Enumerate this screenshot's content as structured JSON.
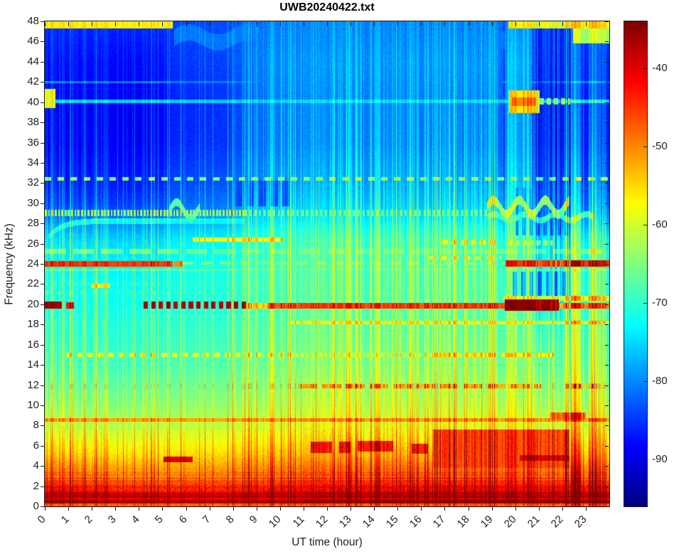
{
  "chart_data": {
    "type": "heatmap",
    "title": "UWB20240422.txt",
    "xlabel": "UT time (hour)",
    "ylabel": "Frequency (kHz)",
    "xlim": [
      0,
      24
    ],
    "ylim": [
      0,
      48
    ],
    "xticks": [
      0,
      1,
      2,
      3,
      4,
      5,
      6,
      7,
      8,
      9,
      10,
      11,
      12,
      13,
      14,
      15,
      16,
      17,
      18,
      19,
      20,
      21,
      22,
      23
    ],
    "yticks": [
      0,
      2,
      4,
      6,
      8,
      10,
      12,
      14,
      16,
      18,
      20,
      22,
      24,
      26,
      28,
      30,
      32,
      34,
      36,
      38,
      40,
      42,
      44,
      46,
      48
    ],
    "colormap": "jet",
    "clim": [
      -96,
      -34
    ],
    "colorbar": {
      "ticks": [
        -40,
        -50,
        -60,
        -70,
        -80,
        -90
      ]
    },
    "notes": "24-hour VLF spectrogram, power in dB. Strong narrowband transmitter lines, broadband sferic streaks, day/night ionospheric change in upper band.",
    "bands": [
      {
        "f": [
          47.3,
          48.0
        ],
        "t": [
          0,
          5.45
        ],
        "db": -57
      },
      {
        "f": [
          47.3,
          48.0
        ],
        "t": [
          19.7,
          24
        ],
        "db": -57
      },
      {
        "f": [
          45.8,
          48.0
        ],
        "t": [
          22.45,
          24
        ],
        "db": -64
      },
      {
        "f": [
          39.9,
          40.25
        ],
        "t": [
          0,
          24
        ],
        "db": -76
      },
      {
        "f": [
          39.4,
          41.3
        ],
        "t": [
          0,
          0.45
        ],
        "db": -60
      },
      {
        "f": [
          38.9,
          41.2
        ],
        "t": [
          19.75,
          21.05
        ],
        "db": -56
      },
      {
        "f": [
          39.6,
          40.5
        ],
        "t": [
          19.85,
          20.9
        ],
        "db": -50
      },
      {
        "f": [
          39.8,
          40.4
        ],
        "t": [
          21.05,
          22.35
        ],
        "db": -64,
        "dash": [
          0.3,
          0.55
        ]
      },
      {
        "f": [
          41.85,
          42.1
        ],
        "t": [
          0,
          24
        ],
        "db": -81
      },
      {
        "f": [
          32.2,
          32.6
        ],
        "t": [
          0,
          24
        ],
        "db": -66,
        "dash": [
          0.55,
          0.5
        ]
      },
      {
        "f": [
          28.75,
          29.35
        ],
        "t": [
          0,
          8.5
        ],
        "db": -64,
        "dash": [
          0.14,
          0.6
        ]
      },
      {
        "f": [
          28.75,
          29.35
        ],
        "t": [
          8.5,
          18.8
        ],
        "db": -68,
        "dash": [
          0.2,
          0.5
        ]
      },
      {
        "f": [
          28.15,
          28.45
        ],
        "t": [
          8.5,
          12
        ],
        "db": -76
      },
      {
        "f": [
          26.2,
          26.6
        ],
        "t": [
          6.3,
          10.1
        ],
        "db": -58
      },
      {
        "f": [
          25.9,
          26.4
        ],
        "t": [
          16.9,
          19.3
        ],
        "db": -61,
        "dash": [
          0.4,
          0.6
        ]
      },
      {
        "f": [
          25.8,
          26.3
        ],
        "t": [
          19.7,
          21.6
        ],
        "db": -63,
        "dash": [
          0.3,
          0.6
        ]
      },
      {
        "f": [
          25.0,
          25.45
        ],
        "t": [
          0,
          24
        ],
        "db": -67,
        "dash": [
          1.2,
          0.75
        ]
      },
      {
        "f": [
          23.75,
          24.3
        ],
        "t": [
          0,
          5.45
        ],
        "db": -46
      },
      {
        "f": [
          23.75,
          24.3
        ],
        "t": [
          5.5,
          5.85
        ],
        "db": -50
      },
      {
        "f": [
          23.9,
          24.2
        ],
        "t": [
          5.85,
          19.6
        ],
        "db": -66,
        "dash": [
          0.8,
          0.6
        ]
      },
      {
        "f": [
          24.4,
          24.75
        ],
        "t": [
          16.3,
          19.4
        ],
        "db": -62,
        "dash": [
          0.5,
          0.6
        ]
      },
      {
        "f": [
          23.7,
          24.35
        ],
        "t": [
          19.6,
          24
        ],
        "db": -45
      },
      {
        "f": [
          23.3,
          23.5
        ],
        "t": [
          0,
          24
        ],
        "db": -68
      },
      {
        "f": [
          21.6,
          22.0
        ],
        "t": [
          1.95,
          2.75
        ],
        "db": -59
      },
      {
        "f": [
          21.9,
          22.25
        ],
        "t": [
          0,
          24
        ],
        "db": -71,
        "dash": [
          0.3,
          0.5
        ]
      },
      {
        "f": [
          21.0,
          21.3
        ],
        "t": [
          0,
          8
        ],
        "db": -70,
        "dash": [
          0.5,
          0.4
        ]
      },
      {
        "f": [
          20.35,
          20.8
        ],
        "t": [
          19.5,
          24
        ],
        "db": -59
      },
      {
        "f": [
          19.55,
          20.25
        ],
        "t": [
          0,
          0.72
        ],
        "db": -37
      },
      {
        "f": [
          19.55,
          20.2
        ],
        "t": [
          0.9,
          1.25
        ],
        "db": -43
      },
      {
        "f": [
          19.55,
          20.25
        ],
        "t": [
          4.2,
          8.55
        ],
        "db": -37,
        "dash": [
          0.32,
          0.58
        ]
      },
      {
        "f": [
          19.6,
          20.1
        ],
        "t": [
          8.55,
          9.5
        ],
        "db": -55
      },
      {
        "f": [
          19.6,
          20.15
        ],
        "t": [
          9.5,
          19.55
        ],
        "db": -47
      },
      {
        "f": [
          19.35,
          20.45
        ],
        "t": [
          19.55,
          21.85
        ],
        "db": -35
      },
      {
        "f": [
          19.6,
          20.15
        ],
        "t": [
          21.85,
          24
        ],
        "db": -50
      },
      {
        "f": [
          18.0,
          18.4
        ],
        "t": [
          10.5,
          24
        ],
        "db": -60
      },
      {
        "f": [
          18.0,
          18.35
        ],
        "t": [
          0,
          10.5
        ],
        "db": -70,
        "dash": [
          0.4,
          0.5
        ]
      },
      {
        "f": [
          16.2,
          16.55
        ],
        "t": [
          0,
          24
        ],
        "db": -71,
        "dash": [
          0.8,
          0.6
        ]
      },
      {
        "f": [
          14.8,
          15.2
        ],
        "t": [
          0.9,
          10.5
        ],
        "db": -58,
        "dash": [
          0.45,
          0.5
        ]
      },
      {
        "f": [
          14.8,
          15.2
        ],
        "t": [
          10.5,
          16.4
        ],
        "db": -60,
        "dash": [
          0.2,
          0.45
        ]
      },
      {
        "f": [
          14.8,
          15.2
        ],
        "t": [
          16.4,
          21.6
        ],
        "db": -57,
        "dash": [
          1.5,
          0.85
        ]
      },
      {
        "f": [
          13.15,
          13.45
        ],
        "t": [
          5.5,
          10.2
        ],
        "db": -72
      },
      {
        "f": [
          11.7,
          12.1
        ],
        "t": [
          10.8,
          21.1
        ],
        "db": -53,
        "dash": [
          1.0,
          0.8
        ]
      },
      {
        "f": [
          11.7,
          12.1
        ],
        "t": [
          22.2,
          23.5
        ],
        "db": -54,
        "dash": [
          0.25,
          0.6
        ]
      },
      {
        "f": [
          8.35,
          8.7
        ],
        "t": [
          0,
          24
        ],
        "db": -52
      },
      {
        "f": [
          8.6,
          9.3
        ],
        "t": [
          21.5,
          23.0
        ],
        "db": -49
      },
      {
        "f": [
          4.35,
          4.9
        ],
        "t": [
          5.05,
          6.3
        ],
        "db": -40
      },
      {
        "f": [
          5.3,
          6.4
        ],
        "t": [
          11.3,
          12.2
        ],
        "db": -44
      },
      {
        "f": [
          5.3,
          6.4
        ],
        "t": [
          12.5,
          13.0
        ],
        "db": -44
      },
      {
        "f": [
          5.4,
          6.5
        ],
        "t": [
          13.3,
          14.8
        ],
        "db": -44
      },
      {
        "f": [
          5.2,
          6.2
        ],
        "t": [
          15.6,
          16.3
        ],
        "db": -44
      },
      {
        "f": [
          3.8,
          7.6
        ],
        "t": [
          16.5,
          22.3
        ],
        "db": -47
      },
      {
        "f": [
          4.5,
          5.1
        ],
        "t": [
          20.2,
          22.3
        ],
        "db": -40
      },
      {
        "f": [
          0.35,
          1.3
        ],
        "t": [
          0,
          24
        ],
        "db": -39
      },
      {
        "f": [
          0.0,
          0.3
        ],
        "t": [
          0,
          24
        ],
        "db": -48,
        "mode": "min"
      },
      {
        "f": [
          29.7,
          32.2
        ],
        "t": [
          8.1,
          10.6
        ],
        "db": -84,
        "mode": "min",
        "dash": [
          0.5,
          0.6
        ]
      },
      {
        "f": [
          20.8,
          23.2
        ],
        "t": [
          19.9,
          22.3
        ],
        "db": -80,
        "mode": "min",
        "dash": [
          0.35,
          0.5
        ]
      },
      {
        "f": [
          26.8,
          31.5
        ],
        "t": [
          20.0,
          22.3
        ],
        "db": -82,
        "mode": "min",
        "dash": [
          0.3,
          0.45
        ]
      }
    ],
    "curves_wavy": [
      {
        "t": [
          5.5,
          19.6
        ],
        "c0": 46.4,
        "amp": 0.5,
        "per": 2.5,
        "th": 0.8,
        "db": -81
      },
      {
        "t": [
          5.3,
          6.6
        ],
        "c0": 29.3,
        "amp": 0.8,
        "per": 1.2,
        "th": 0.4,
        "db": -68
      },
      {
        "t": [
          18.8,
          22.3
        ],
        "c0": 29.6,
        "amp": 0.7,
        "per": 1.1,
        "th": 0.45,
        "db": -64
      },
      {
        "t": [
          18.8,
          23.3
        ],
        "c0": 28.6,
        "amp": 0.3,
        "per": 1.3,
        "th": 0.3,
        "db": -70
      }
    ],
    "curves_hook": [
      {
        "t": [
          0.15,
          8.5
        ],
        "cEnd": 28.25,
        "drop": 1.65,
        "tau": 0.55,
        "th": 0.28,
        "db": -73
      }
    ],
    "render": {
      "seed": 987654321,
      "profile": [
        [
          0,
          -41
        ],
        [
          0.4,
          -40
        ],
        [
          1.2,
          -42
        ],
        [
          2,
          -46
        ],
        [
          3,
          -50
        ],
        [
          4,
          -53
        ],
        [
          5,
          -56
        ],
        [
          6,
          -58
        ],
        [
          7,
          -60
        ],
        [
          8,
          -62
        ],
        [
          9,
          -63.5
        ],
        [
          10,
          -65
        ],
        [
          11,
          -66
        ],
        [
          12,
          -67
        ],
        [
          14,
          -69
        ],
        [
          16,
          -70
        ],
        [
          18,
          -71
        ],
        [
          20,
          -72
        ],
        [
          22,
          -72.5
        ],
        [
          24,
          -73.5
        ],
        [
          26,
          -75
        ],
        [
          27,
          -77
        ],
        [
          28,
          -80
        ],
        [
          29,
          -83
        ],
        [
          30,
          -85
        ],
        [
          32,
          -87
        ],
        [
          34,
          -88
        ],
        [
          36,
          -89
        ],
        [
          38,
          -89
        ],
        [
          40,
          -89
        ],
        [
          42,
          -88.5
        ],
        [
          44,
          -88
        ],
        [
          46,
          -87
        ],
        [
          48,
          -86
        ]
      ],
      "day_amount": [
        [
          0,
          0
        ],
        [
          3,
          1
        ],
        [
          8,
          2
        ],
        [
          12,
          2.5
        ],
        [
          20,
          3
        ],
        [
          24,
          4
        ],
        [
          26,
          5
        ],
        [
          28,
          6.5
        ],
        [
          30,
          8
        ],
        [
          44,
          8
        ],
        [
          48,
          5
        ]
      ],
      "day_window": [
        [
          0,
          0
        ],
        [
          4.8,
          0
        ],
        [
          5.5,
          0.35
        ],
        [
          8,
          0.5
        ],
        [
          8.6,
          0.8
        ],
        [
          9.6,
          1
        ],
        [
          18.8,
          1
        ],
        [
          19.35,
          0.9
        ],
        [
          19.55,
          0.45
        ],
        [
          19.7,
          1.25
        ],
        [
          20.55,
          1.25
        ],
        [
          20.75,
          0.45
        ],
        [
          22.3,
          0.45
        ],
        [
          22.5,
          0.25
        ],
        [
          24,
          0.25
        ]
      ],
      "low_time": [
        [
          0,
          2.5
        ],
        [
          1,
          2.5
        ],
        [
          2.5,
          1.5
        ],
        [
          4,
          0.5
        ],
        [
          8,
          1
        ],
        [
          11,
          2
        ],
        [
          14,
          2.5
        ],
        [
          16.5,
          3
        ],
        [
          19,
          3
        ],
        [
          22.3,
          3
        ],
        [
          22.5,
          2
        ],
        [
          24,
          2
        ]
      ],
      "streak_density": [
        [
          0,
          0.32
        ],
        [
          2.4,
          0.3
        ],
        [
          3,
          0.18
        ],
        [
          5,
          0.2
        ],
        [
          8,
          0.26
        ],
        [
          10,
          0.42
        ],
        [
          12,
          0.5
        ],
        [
          14,
          0.5
        ],
        [
          17,
          0.44
        ],
        [
          19.4,
          0.42
        ],
        [
          19.8,
          0.5
        ],
        [
          23.5,
          0.45
        ],
        [
          24,
          0.4
        ]
      ],
      "streak_shape": [
        [
          0,
          0.45
        ],
        [
          2,
          0.7
        ],
        [
          3,
          1
        ],
        [
          30,
          1
        ],
        [
          34,
          0.9
        ],
        [
          40,
          0.7
        ],
        [
          44,
          0.55
        ],
        [
          48,
          0.45
        ]
      ],
      "burst_windows": [
        [
          22.3,
          22.8
        ],
        [
          23.1,
          23.5
        ]
      ],
      "dark_window": [
        20.55,
        22.35
      ]
    }
  },
  "layout_text": {
    "note": "static figure, no interactive widgets visible"
  }
}
